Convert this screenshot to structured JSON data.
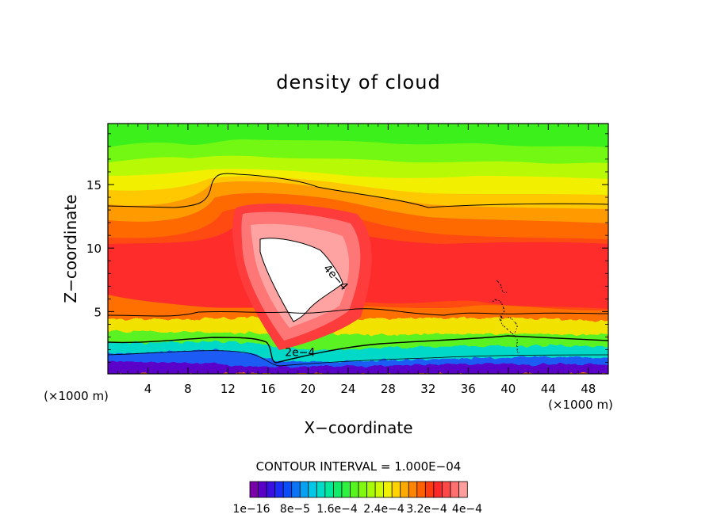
{
  "chart_data": {
    "type": "contour",
    "title": "density of cloud",
    "xlabel": "X−coordinate",
    "ylabel": "Z−coordinate",
    "x_unit_left": "(×1000 m)",
    "x_unit_right": "(×1000 m)",
    "xlim": [
      0,
      50
    ],
    "ylim": [
      0.1,
      19.8
    ],
    "xticks": [
      4,
      8,
      12,
      16,
      20,
      24,
      28,
      32,
      36,
      40,
      44,
      48
    ],
    "yticks": [
      5,
      10,
      15
    ],
    "contour_labels": [
      {
        "text": "4e−4",
        "x": 22.5,
        "y": 7.5
      },
      {
        "text": "2e−4",
        "x": 19.2,
        "y": 1.5
      }
    ],
    "contour_interval_text": "CONTOUR INTERVAL = 1.000E−04",
    "colorbar": {
      "colors": [
        "#7a00a8",
        "#5a00c8",
        "#3a10e0",
        "#1a2cf5",
        "#0a4cf8",
        "#0a74f5",
        "#08a0f0",
        "#00c8e6",
        "#00dcc8",
        "#00e89c",
        "#10ec6a",
        "#30f040",
        "#58f420",
        "#80f810",
        "#a8fa08",
        "#d0fa00",
        "#f0f000",
        "#ffd200",
        "#ffaa00",
        "#ff8400",
        "#ff6000",
        "#ff3c10",
        "#ff2828",
        "#ff4848",
        "#ff7070",
        "#ff9c9c"
      ],
      "tick_labels": [
        "1e−16",
        "8e−5",
        "1.6e−4",
        "2.4e−4",
        "3.2e−4",
        "4e−4"
      ]
    }
  }
}
